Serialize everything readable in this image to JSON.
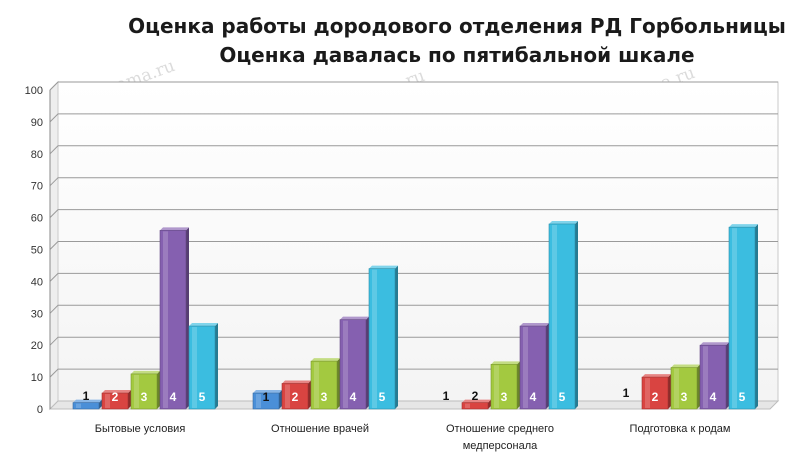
{
  "title": [
    "Оценка работы дородового отделения РД Горбольницы",
    "Оценка давалась по пятибальной шкале"
  ],
  "watermark": "sibmama.ru",
  "chart_data": {
    "type": "bar",
    "title": "Оценка работы дородового отделения РД Горбольницы\nОценка давалась по пятибальной шкале",
    "xlabel": "",
    "ylabel": "",
    "ylim": [
      0,
      100
    ],
    "yticks": [
      0,
      10,
      20,
      30,
      40,
      50,
      60,
      70,
      80,
      90,
      100
    ],
    "grid": true,
    "legend": "none",
    "categories": [
      [
        "Бытовые условия"
      ],
      [
        "Отношение врачей"
      ],
      [
        "Отношение среднего",
        "медперсонала"
      ],
      [
        "Подготовка к родам"
      ]
    ],
    "series": [
      {
        "label": "1",
        "color": "#4a8fd8",
        "values": [
          2,
          5,
          0,
          0
        ]
      },
      {
        "label": "2",
        "color": "#d94441",
        "values": [
          5,
          8,
          2,
          10
        ]
      },
      {
        "label": "3",
        "color": "#a3c940",
        "values": [
          11,
          15,
          14,
          13
        ]
      },
      {
        "label": "4",
        "color": "#8560b0",
        "values": [
          56,
          28,
          26,
          20
        ]
      },
      {
        "label": "5",
        "color": "#3bbde0",
        "values": [
          26,
          44,
          58,
          57
        ]
      }
    ]
  }
}
